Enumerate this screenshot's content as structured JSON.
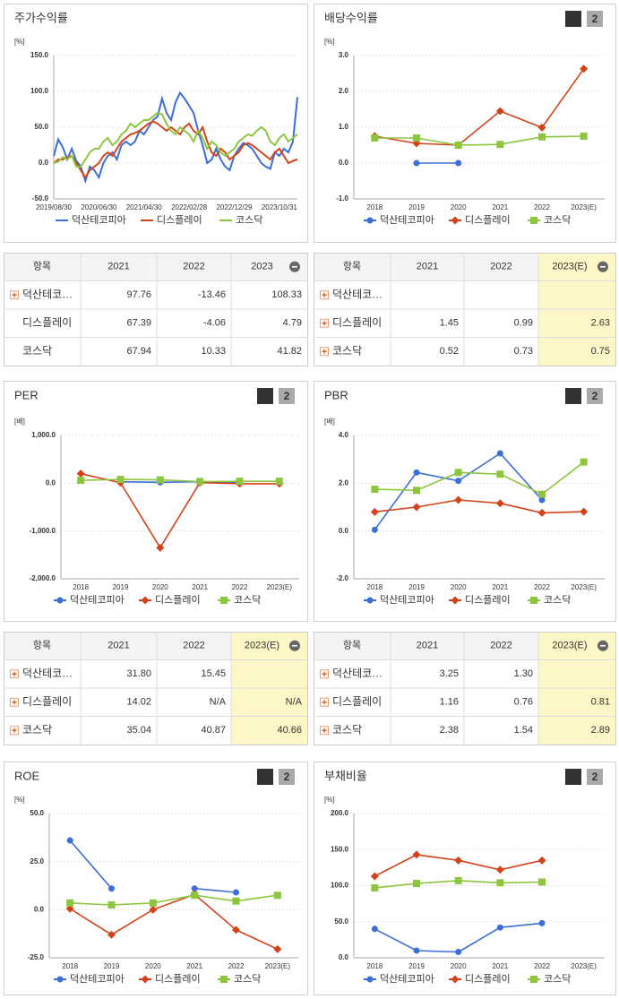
{
  "chart_data": [
    {
      "type": "line",
      "title": "주가수익률",
      "unit": "[%]",
      "markers": false,
      "grid": true,
      "categories": [
        "2019/08/30",
        null,
        null,
        null,
        null,
        null,
        null,
        null,
        null,
        null,
        "2020/06/30",
        null,
        null,
        null,
        null,
        null,
        null,
        null,
        null,
        null,
        "2021/04/30",
        null,
        null,
        null,
        null,
        null,
        null,
        null,
        null,
        null,
        "2022/02/28",
        null,
        null,
        null,
        null,
        null,
        null,
        null,
        null,
        null,
        "2022/12/29",
        null,
        null,
        null,
        null,
        null,
        null,
        null,
        null,
        null,
        "2023/10/31",
        null,
        null,
        null,
        null
      ],
      "series": [
        {
          "name": "덕산테코피아",
          "color": "#3b6fd6",
          "values": [
            10,
            33,
            22,
            5,
            20,
            3,
            -5,
            -25,
            -5,
            -10,
            -20,
            0,
            10,
            15,
            5,
            25,
            30,
            25,
            30,
            45,
            40,
            50,
            60,
            65,
            90,
            70,
            60,
            85,
            98,
            90,
            80,
            70,
            45,
            25,
            0,
            5,
            20,
            5,
            -5,
            -10,
            10,
            20,
            28,
            25,
            20,
            10,
            0,
            -5,
            -8,
            15,
            10,
            20,
            15,
            30,
            92
          ]
        },
        {
          "name": "디스플레이",
          "color": "#d4421a",
          "values": [
            0,
            5,
            5,
            8,
            10,
            0,
            -10,
            -20,
            -10,
            -5,
            0,
            10,
            15,
            10,
            20,
            30,
            35,
            40,
            42,
            45,
            50,
            55,
            58,
            55,
            50,
            45,
            50,
            45,
            40,
            50,
            55,
            45,
            40,
            50,
            30,
            15,
            10,
            20,
            15,
            5,
            10,
            15,
            25,
            28,
            25,
            20,
            15,
            10,
            5,
            15,
            20,
            10,
            0,
            3,
            5
          ]
        },
        {
          "name": "코스닥",
          "color": "#8cc63e",
          "values": [
            0,
            2,
            8,
            5,
            10,
            -5,
            -5,
            5,
            15,
            20,
            20,
            30,
            35,
            25,
            30,
            40,
            45,
            55,
            50,
            55,
            60,
            60,
            65,
            70,
            68,
            55,
            45,
            40,
            50,
            45,
            40,
            30,
            45,
            35,
            20,
            30,
            25,
            15,
            10,
            15,
            20,
            30,
            35,
            40,
            38,
            45,
            50,
            45,
            30,
            25,
            35,
            40,
            30,
            35,
            40
          ]
        }
      ],
      "ylim": [
        -50,
        150
      ],
      "yticks": [
        {
          "value": -50,
          "label": "-50.0"
        },
        {
          "value": 0,
          "label": "0.0"
        },
        {
          "value": 50,
          "label": "50.0"
        },
        {
          "value": 100,
          "label": "100.0"
        },
        {
          "value": 150,
          "label": "150.0"
        }
      ]
    },
    {
      "type": "line",
      "title": "배당수익률",
      "unit": "[%]",
      "markers": true,
      "grid": true,
      "pager": [
        "1",
        "2"
      ],
      "categories": [
        "2018",
        "2019",
        "2020",
        "2021",
        "2022",
        "2023(E)"
      ],
      "series": [
        {
          "name": "덕산테코피아",
          "color": "#3b6fd6",
          "marker": "circle",
          "values": [
            null,
            0,
            0,
            null,
            null,
            null
          ]
        },
        {
          "name": "디스플레이",
          "color": "#d4421a",
          "marker": "diamond",
          "values": [
            0.75,
            0.55,
            0.5,
            1.45,
            0.99,
            2.63
          ]
        },
        {
          "name": "코스닥",
          "color": "#8cc63e",
          "marker": "square",
          "values": [
            0.7,
            0.7,
            0.5,
            0.52,
            0.73,
            0.75
          ]
        }
      ],
      "ylim": [
        -1,
        3
      ],
      "yticks": [
        {
          "value": -1,
          "label": "-1.0"
        },
        {
          "value": 0,
          "label": "0.0"
        },
        {
          "value": 1,
          "label": "1.0"
        },
        {
          "value": 2,
          "label": "2.0"
        },
        {
          "value": 3,
          "label": "3.0"
        }
      ]
    },
    {
      "type": "line",
      "title": "PER",
      "unit": "[배]",
      "markers": true,
      "grid": true,
      "pager": [
        "1",
        "2"
      ],
      "categories": [
        "2018",
        "2019",
        "2020",
        "2021",
        "2022",
        "2023(E)"
      ],
      "series": [
        {
          "name": "덕산테코피아",
          "color": "#3b6fd6",
          "marker": "circle",
          "values": [
            null,
            30,
            20,
            31.8,
            15.45,
            null
          ]
        },
        {
          "name": "디스플레이",
          "color": "#d4421a",
          "marker": "diamond",
          "values": [
            200,
            10,
            -1350,
            14.02,
            -10,
            -10
          ]
        },
        {
          "name": "코스닥",
          "color": "#8cc63e",
          "marker": "square",
          "values": [
            60,
            80,
            70,
            35.04,
            40.87,
            40.66
          ]
        }
      ],
      "ylim": [
        -2000,
        1000
      ],
      "yticks": [
        {
          "value": -2000,
          "label": "-2,000.0"
        },
        {
          "value": -1000,
          "label": "-1,000.0"
        },
        {
          "value": 0,
          "label": "0.0"
        },
        {
          "value": 1000,
          "label": "1,000.0"
        }
      ]
    },
    {
      "type": "line",
      "title": "PBR",
      "unit": "[배]",
      "markers": true,
      "grid": true,
      "pager": [
        "1",
        "2"
      ],
      "categories": [
        "2018",
        "2019",
        "2020",
        "2021",
        "2022",
        "2023(E)"
      ],
      "series": [
        {
          "name": "덕산테코피아",
          "color": "#3b6fd6",
          "marker": "circle",
          "values": [
            0.05,
            2.45,
            2.1,
            3.25,
            1.3,
            null
          ]
        },
        {
          "name": "디스플레이",
          "color": "#d4421a",
          "marker": "diamond",
          "values": [
            0.8,
            1.0,
            1.3,
            1.16,
            0.76,
            0.81
          ]
        },
        {
          "name": "코스닥",
          "color": "#8cc63e",
          "marker": "square",
          "values": [
            1.75,
            1.7,
            2.45,
            2.38,
            1.54,
            2.89
          ]
        }
      ],
      "ylim": [
        -2,
        4
      ],
      "yticks": [
        {
          "value": -2,
          "label": "-2.0"
        },
        {
          "value": 0,
          "label": "0.0"
        },
        {
          "value": 2,
          "label": "2.0"
        },
        {
          "value": 4,
          "label": "4.0"
        }
      ]
    },
    {
      "type": "line",
      "title": "ROE",
      "unit": "[%]",
      "markers": true,
      "grid": true,
      "pager": [
        "1",
        "2"
      ],
      "categories": [
        "2018",
        "2019",
        "2020",
        "2021",
        "2022",
        "2023(E)"
      ],
      "series": [
        {
          "name": "덕산테코피아",
          "color": "#3b6fd6",
          "marker": "circle",
          "values": [
            36,
            11,
            null,
            11,
            9,
            null
          ]
        },
        {
          "name": "디스플레이",
          "color": "#d4421a",
          "marker": "diamond",
          "values": [
            0.5,
            -13,
            0,
            8,
            -10.5,
            -20.5
          ]
        },
        {
          "name": "코스닥",
          "color": "#8cc63e",
          "marker": "square",
          "values": [
            3.5,
            2.5,
            3.5,
            7.5,
            4.5,
            7.5
          ]
        }
      ],
      "ylim": [
        -25,
        50
      ],
      "yticks": [
        {
          "value": -25,
          "label": "-25.0"
        },
        {
          "value": 0,
          "label": "0.0"
        },
        {
          "value": 25,
          "label": "25.0"
        },
        {
          "value": 50,
          "label": "50.0"
        }
      ]
    },
    {
      "type": "line",
      "title": "부채비율",
      "unit": "[%]",
      "markers": true,
      "grid": true,
      "pager": [
        "1",
        "2"
      ],
      "categories": [
        "2018",
        "2019",
        "2020",
        "2021",
        "2022",
        "2023(E)"
      ],
      "series": [
        {
          "name": "덕산테코피아",
          "color": "#3b6fd6",
          "marker": "circle",
          "values": [
            40,
            10,
            8,
            42,
            48,
            null
          ]
        },
        {
          "name": "디스플레이",
          "color": "#d4421a",
          "marker": "diamond",
          "values": [
            113,
            143,
            135,
            122,
            135,
            null
          ]
        },
        {
          "name": "코스닥",
          "color": "#8cc63e",
          "marker": "square",
          "values": [
            97,
            103,
            107,
            104,
            105,
            null
          ]
        }
      ],
      "ylim": [
        0,
        200
      ],
      "yticks": [
        {
          "value": 0,
          "label": "0.0"
        },
        {
          "value": 50,
          "label": "50.0"
        },
        {
          "value": 100,
          "label": "100.0"
        },
        {
          "value": 150,
          "label": "150.0"
        },
        {
          "value": 200,
          "label": "200.0"
        }
      ]
    }
  ],
  "tables": [
    {
      "columns": [
        "항목",
        "2021",
        "2022",
        "2023"
      ],
      "highlight_last": false,
      "rows": [
        [
          "덕산테코…",
          "97.76",
          "-13.46",
          "108.33"
        ],
        [
          "디스플레이",
          "67.39",
          "-4.06",
          "4.79"
        ],
        [
          "코스닥",
          "67.94",
          "10.33",
          "41.82"
        ]
      ]
    },
    {
      "columns": [
        "항목",
        "2021",
        "2022",
        "2023(E)"
      ],
      "highlight_last": true,
      "rows": [
        [
          "덕산테코…",
          null,
          null,
          null
        ],
        [
          "디스플레이",
          "1.45",
          "0.99",
          "2.63"
        ],
        [
          "코스닥",
          "0.52",
          "0.73",
          "0.75"
        ]
      ]
    },
    {
      "columns": [
        "항목",
        "2021",
        "2022",
        "2023(E)"
      ],
      "highlight_last": true,
      "rows": [
        [
          "덕산테코…",
          "31.80",
          "15.45",
          null
        ],
        [
          "디스플레이",
          "14.02",
          "N/A",
          "N/A"
        ],
        [
          "코스닥",
          "35.04",
          "40.87",
          "40.66"
        ]
      ]
    },
    {
      "columns": [
        "항목",
        "2021",
        "2022",
        "2023(E)"
      ],
      "highlight_last": true,
      "rows": [
        [
          "덕산테코…",
          "3.25",
          "1.30",
          null
        ],
        [
          "디스플레이",
          "1.16",
          "0.76",
          "0.81"
        ],
        [
          "코스닥",
          "2.38",
          "1.54",
          "2.89"
        ]
      ]
    }
  ]
}
